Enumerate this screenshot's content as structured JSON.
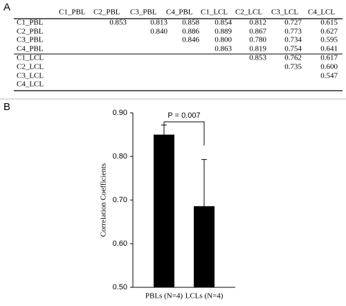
{
  "panel_a": {
    "label": "A",
    "table": {
      "header": [
        "C1_PBL",
        "C2_PBL",
        "C3_PBL",
        "C4_PBL",
        "C1_LCL",
        "C2_LCL",
        "C3_LCL",
        "C4_LCL"
      ],
      "rows": [
        {
          "label": "C1_PBL",
          "cells": [
            null,
            "0.853",
            "0.813",
            "0.858",
            "0.854",
            "0.812",
            "0.727",
            "0.615"
          ]
        },
        {
          "label": "C2_PBL",
          "cells": [
            null,
            null,
            "0.840",
            "0.886",
            "0.889",
            "0.867",
            "0.773",
            "0.627"
          ]
        },
        {
          "label": "C3_PBL",
          "cells": [
            null,
            null,
            null,
            "0.846",
            "0.800",
            "0.780",
            "0.734",
            "0.595"
          ]
        },
        {
          "label": "C4_PBL",
          "cells": [
            null,
            null,
            null,
            null,
            "0.863",
            "0.819",
            "0.754",
            "0.641"
          ]
        },
        {
          "label": "C1_LCL",
          "cells": [
            null,
            null,
            null,
            null,
            null,
            "0.853",
            "0.762",
            "0.617"
          ]
        },
        {
          "label": "C2_LCL",
          "cells": [
            null,
            null,
            null,
            null,
            null,
            null,
            "0.735",
            "0.600"
          ]
        },
        {
          "label": "C3_LCL",
          "cells": [
            null,
            null,
            null,
            null,
            null,
            null,
            null,
            "0.547"
          ]
        },
        {
          "label": "C4_LCL",
          "cells": [
            null,
            null,
            null,
            null,
            null,
            null,
            null,
            null
          ]
        }
      ]
    }
  },
  "panel_b": {
    "label": "B"
  },
  "chart_data": {
    "type": "bar",
    "ylabel": "Correlation Coefficients",
    "categories": [
      "PBLs (N=4)",
      "LCLs (N=4)"
    ],
    "values": [
      0.85,
      0.686
    ],
    "errors": [
      0.022,
      0.107
    ],
    "color": "#000000",
    "ylim": [
      0.5,
      0.9
    ],
    "yticks": [
      {
        "value": 0.5,
        "label": "0.50"
      },
      {
        "value": 0.6,
        "label": "0.60"
      },
      {
        "value": 0.7,
        "label": "0.70"
      },
      {
        "value": 0.8,
        "label": "0.80"
      },
      {
        "value": 0.9,
        "label": "0.90"
      }
    ],
    "annotation": "P = 0.007"
  }
}
